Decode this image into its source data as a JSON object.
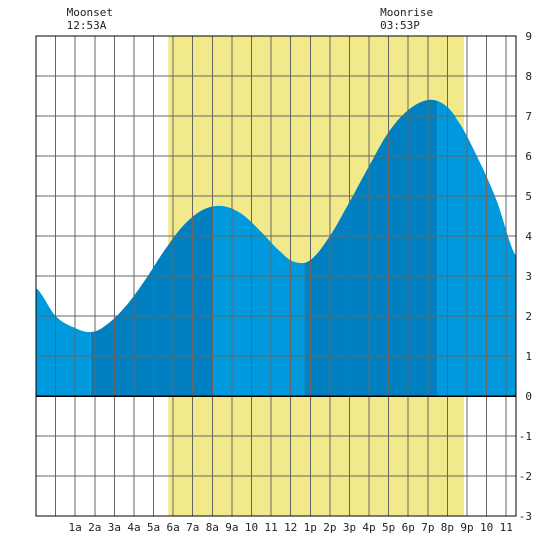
{
  "chart_data": {
    "type": "area",
    "title": "",
    "xlabel": "",
    "ylabel": "",
    "x_unit": "hours after midnight",
    "xlim": [
      -1,
      23.5
    ],
    "ylim": [
      -3,
      9
    ],
    "grid": true,
    "x_tick_labels": [
      "1a",
      "2a",
      "3a",
      "4a",
      "5a",
      "6a",
      "7a",
      "8a",
      "9a",
      "10",
      "11",
      "12",
      "1p",
      "2p",
      "3p",
      "4p",
      "5p",
      "6p",
      "7p",
      "8p",
      "9p",
      "10",
      "11"
    ],
    "y_tick_labels": [
      "-3",
      "-2",
      "-1",
      "0",
      "1",
      "2",
      "3",
      "4",
      "5",
      "6",
      "7",
      "8",
      "9"
    ],
    "series": [
      {
        "x": [
          -1,
          0,
          1,
          1.8,
          2.5,
          3.5,
          4.5,
          5.5,
          6.5,
          7.5,
          8.5,
          9.5,
          10.5,
          11.5,
          12.2,
          13,
          14,
          15,
          16,
          17,
          18,
          19,
          19.8,
          20.5,
          21.5,
          22.5,
          23.5
        ],
        "y": [
          2.7,
          2.0,
          1.7,
          1.6,
          1.75,
          2.2,
          2.85,
          3.6,
          4.25,
          4.65,
          4.75,
          4.55,
          4.1,
          3.6,
          3.35,
          3.4,
          4.0,
          4.85,
          5.75,
          6.6,
          7.15,
          7.4,
          7.3,
          6.9,
          6.0,
          4.9,
          3.5
        ]
      }
    ],
    "daylight": {
      "start": 5.75,
      "end": 20.85,
      "color": "#f2ea8a"
    },
    "low_high_boundaries": [
      1.8,
      8.0,
      12.7,
      19.5
    ],
    "colors": {
      "fill": "#0099dd",
      "fill_dark": "#0080c0",
      "grid": "#666666",
      "axis": "#000000"
    },
    "moon": [
      {
        "label": "Moonset",
        "time": "12:53A",
        "x": -0.1
      },
      {
        "label": "Moonrise",
        "time": "03:53P",
        "x": 15.9
      }
    ]
  }
}
